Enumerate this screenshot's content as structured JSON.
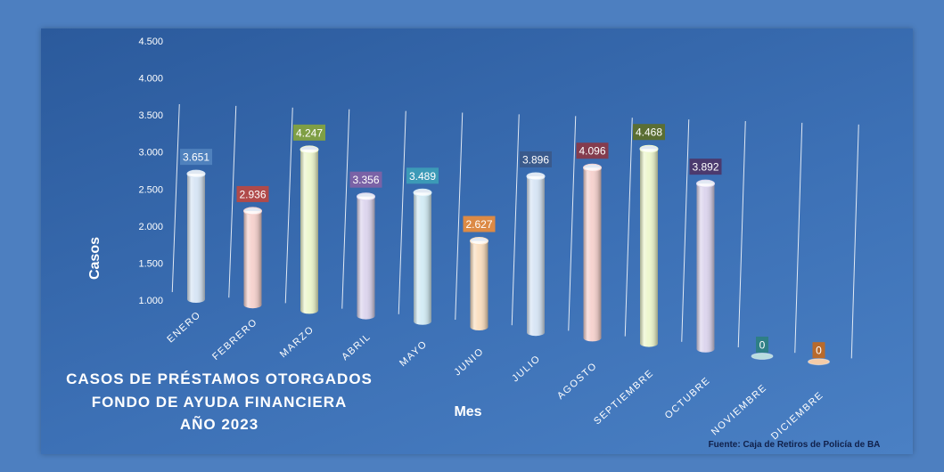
{
  "chart_data": {
    "type": "bar",
    "title": [
      "CASOS DE PRÉSTAMOS OTORGADOS",
      "FONDO DE AYUDA FINANCIERA",
      "AÑO 2023"
    ],
    "xlabel": "Mes",
    "ylabel": "Casos",
    "source": "Fuente: Caja de Retiros de Policía de BA",
    "ylim": [
      1000,
      4500
    ],
    "yticks": [
      "1.000",
      "1.500",
      "2.000",
      "2.500",
      "3.000",
      "3.500",
      "4.000",
      "4.500"
    ],
    "ytick_values": [
      1000,
      1500,
      2000,
      2500,
      3000,
      3500,
      4000,
      4500
    ],
    "categories": [
      "ENERO",
      "FEBRERO",
      "MARZO",
      "ABRIL",
      "MAYO",
      "JUNIO",
      "JULIO",
      "AGOSTO",
      "SEPTIEMBRE",
      "OCTUBRE",
      "NOVIEMBRE",
      "DICIEMBRE"
    ],
    "values": [
      3651,
      2936,
      4247,
      3356,
      3489,
      2627,
      3896,
      4096,
      4468,
      3892,
      0,
      0
    ],
    "value_labels": [
      "3.651",
      "2.936",
      "4.247",
      "3.356",
      "3.489",
      "2.627",
      "3.896",
      "4.096",
      "4.468",
      "3.892",
      "0",
      "0"
    ],
    "bar_colors": [
      "#d8e6f5",
      "#f6d3cf",
      "#eef7cf",
      "#ddd6ee",
      "#d4ecf5",
      "#fbe0c2",
      "#d8e6f5",
      "#f6d3cf",
      "#eef7cf",
      "#ddd6ee",
      "#b8dcdf",
      "#f3cba8"
    ],
    "label_colors": [
      "#4f81bd",
      "#b04a4a",
      "#7f9f45",
      "#7a62a6",
      "#3c9ab7",
      "#dc8a45",
      "#3a5a8c",
      "#843c4e",
      "#5a6e33",
      "#4b3a6e",
      "#2e7f86",
      "#b86a2c"
    ],
    "grid": true,
    "legend": "none"
  }
}
